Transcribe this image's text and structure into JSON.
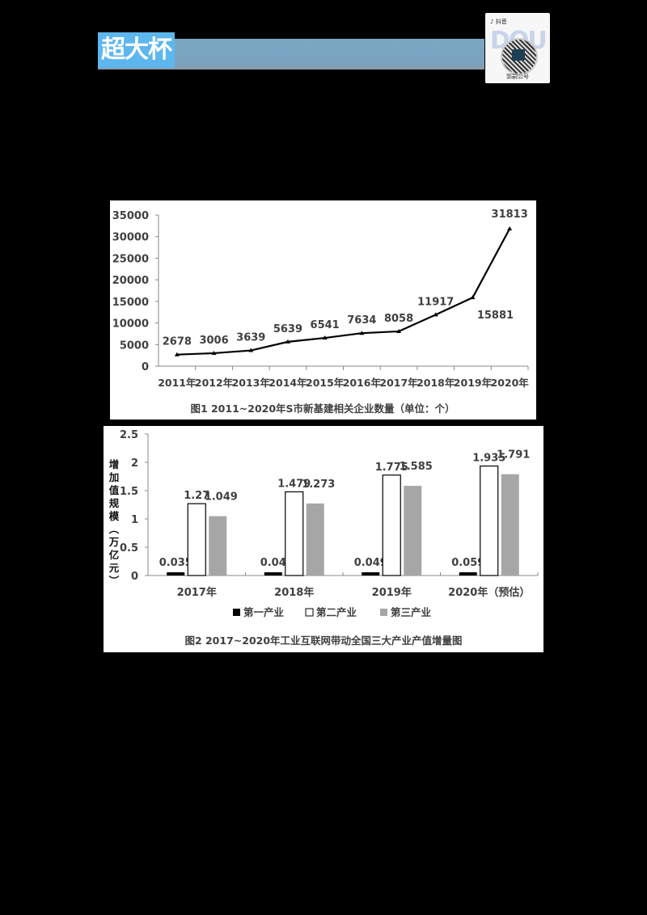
{
  "header": {
    "title": "超大杯",
    "qr_badge": {
      "brand": "抖音",
      "watermark": "DOU",
      "caption": "郭嗣公号"
    }
  },
  "colors": {
    "banner_bar": "#7ba7c4",
    "banner_title_bg": "#5db7ee",
    "line": "#000000",
    "series_primary": "#000000",
    "series_secondary": "#ffffff",
    "series_tertiary": "#a6a6a6",
    "text": "#404040"
  },
  "chart_data": [
    {
      "type": "line",
      "title": "图1  2011~2020年S市新基建相关企业数量（单位：个）",
      "xlabel": "",
      "ylabel": "",
      "categories": [
        "2011年",
        "2012年",
        "2013年",
        "2014年",
        "2015年",
        "2016年",
        "2017年",
        "2018年",
        "2019年",
        "2020年"
      ],
      "values": [
        2678,
        3006,
        3639,
        5639,
        6541,
        7634,
        8058,
        11917,
        15881,
        31813
      ],
      "data_labels": [
        "2678",
        "3006",
        "3639",
        "5639",
        "6541",
        "7634",
        "8058",
        "11917",
        "15881",
        "31813"
      ],
      "yticks": [
        "0",
        "5000",
        "10000",
        "15000",
        "20000",
        "25000",
        "30000",
        "35000"
      ],
      "ylim": [
        0,
        35000
      ],
      "grid": false,
      "legend": null
    },
    {
      "type": "bar",
      "title": "图2  2017~2020年工业互联网带动全国三大产业产值增量图",
      "xlabel": "",
      "ylabel": "增加值规模（万亿元）",
      "categories": [
        "2017年",
        "2018年",
        "2019年",
        "2020年（预估）"
      ],
      "series": [
        {
          "name": "第一产业",
          "values": [
            0.035,
            0.04,
            0.049,
            0.059
          ],
          "labels": [
            "0.035",
            "0.04",
            "0.049",
            "0.059"
          ]
        },
        {
          "name": "第二产业",
          "values": [
            1.27,
            1.479,
            1.775,
            1.935
          ],
          "labels": [
            "1.27",
            "1.479",
            "1.775",
            "1.935"
          ]
        },
        {
          "name": "第三产业",
          "values": [
            1.049,
            1.273,
            1.585,
            1.791
          ],
          "labels": [
            "1.049",
            "1.273",
            "1.585",
            "1.791"
          ]
        }
      ],
      "yticks": [
        "0",
        "0.5",
        "1",
        "1.5",
        "2",
        "2.5"
      ],
      "ylim": [
        0,
        2.5
      ],
      "grid": false,
      "legend": {
        "position": "bottom",
        "entries": [
          "第一产业",
          "第二产业",
          "第三产业"
        ]
      }
    }
  ]
}
